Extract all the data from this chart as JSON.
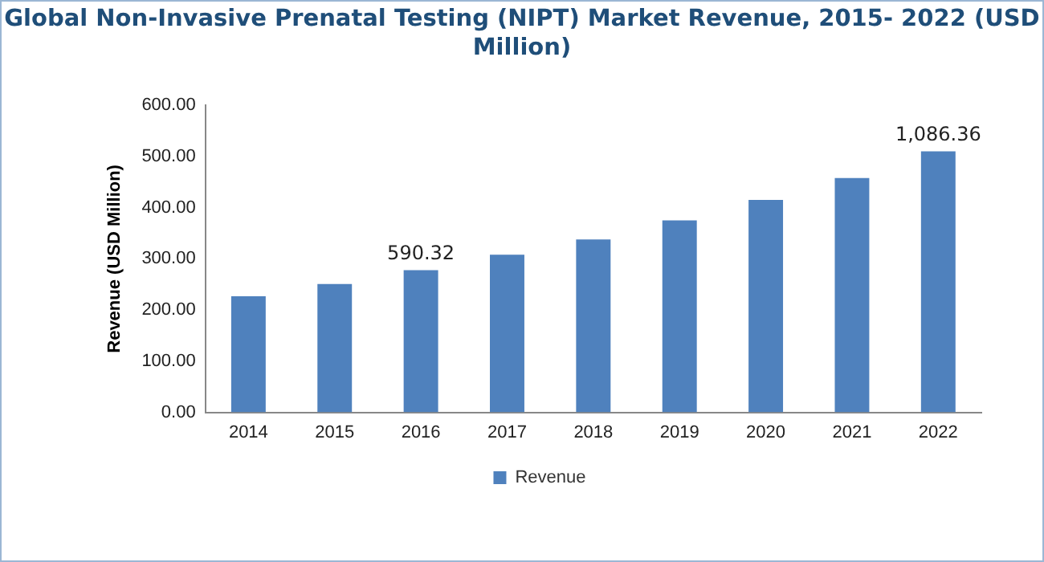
{
  "chart_data": {
    "type": "bar",
    "title": "Global Non-Invasive Prenatal Testing (NIPT) Market Revenue, 2015- 2022 (USD Million)",
    "ylabel": "Revenue (USD Million)",
    "categories": [
      "2014",
      "2015",
      "2016",
      "2017",
      "2018",
      "2019",
      "2020",
      "2021",
      "2022"
    ],
    "series": [
      {
        "name": "Revenue",
        "color": "#4f81bd",
        "values": [
          227,
          251,
          278,
          308,
          338,
          375,
          415,
          458,
          510
        ]
      }
    ],
    "annotations": [
      {
        "text": "590.32",
        "x": "2016",
        "y": 278
      },
      {
        "text": "1,086.36",
        "x": "2022",
        "y": 510
      }
    ],
    "ylim": [
      0,
      600
    ],
    "yticks": [
      {
        "value": 0,
        "label": "0.00"
      },
      {
        "value": 100,
        "label": "100.00"
      },
      {
        "value": 200,
        "label": "200.00"
      },
      {
        "value": 300,
        "label": "300.00"
      },
      {
        "value": 400,
        "label": "400.00"
      },
      {
        "value": 500,
        "label": "500.00"
      },
      {
        "value": 600,
        "label": "600.00"
      }
    ],
    "grid": false,
    "legend": "bottom"
  }
}
